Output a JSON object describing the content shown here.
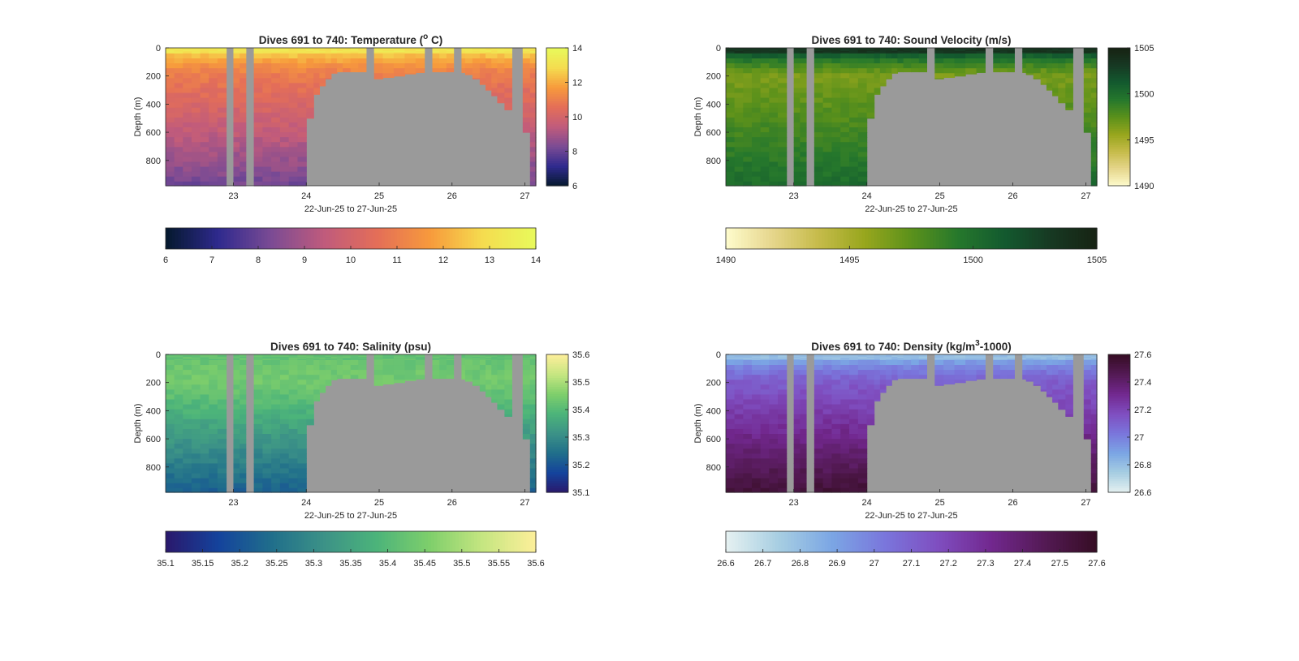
{
  "figure": {
    "background": "#ffffff",
    "mask_color": "#9a9a9a",
    "axis_color": "#262626"
  },
  "chart_data": [
    {
      "id": "temperature",
      "type": "heatmap",
      "title": "Dives 691 to 740: Temperature (",
      "title_sup": "o",
      "title_tail": " C)",
      "xlabel": "22-Jun-25 to 27-Jun-25",
      "ylabel": "Depth (m)",
      "xlim": [
        22.07,
        27.15
      ],
      "ylim": [
        0,
        980
      ],
      "y_reversed": true,
      "xticks": [
        23,
        24,
        25,
        26,
        27
      ],
      "yticks": [
        0,
        200,
        400,
        600,
        800
      ],
      "colormap": "thermal",
      "colormap_stops": [
        "#04192d",
        "#2f2a8e",
        "#7b4b94",
        "#c05b7c",
        "#e46e58",
        "#f79a3c",
        "#f5dc4f",
        "#e8fa5b"
      ],
      "clim": [
        6,
        14
      ],
      "colorbar_vertical_ticks": [
        6,
        8,
        10,
        12,
        14
      ],
      "colorbar_horizontal_ticks": [
        6,
        7,
        8,
        9,
        10,
        11,
        12,
        13,
        14
      ],
      "profile": {
        "surface_value": 13.2,
        "mixed_layer_depth": 35,
        "value_at_200": 10.9,
        "value_at_900": 8.4
      }
    },
    {
      "id": "sound_velocity",
      "type": "heatmap",
      "title": "Dives 691 to 740: Sound Velocity (m/s)",
      "xlabel": "22-Jun-25 to 27-Jun-25",
      "ylabel": "Depth (m)",
      "xlim": [
        22.07,
        27.15
      ],
      "ylim": [
        0,
        980
      ],
      "y_reversed": true,
      "xticks": [
        23,
        24,
        25,
        26,
        27
      ],
      "yticks": [
        0,
        200,
        400,
        600,
        800
      ],
      "colormap": "speed",
      "colormap_stops": [
        "#fefccd",
        "#e6d68c",
        "#c6bb4a",
        "#97a61d",
        "#5b911b",
        "#26782c",
        "#135a2f",
        "#173923",
        "#172313"
      ],
      "clim": [
        1490,
        1505
      ],
      "colorbar_vertical_ticks": [
        1490,
        1495,
        1500,
        1505
      ],
      "colorbar_horizontal_ticks": [
        1490,
        1495,
        1500,
        1505
      ],
      "profile": {
        "surface_value": 1503.5,
        "mixed_layer_depth": 35,
        "value_at_200": 1496.5,
        "value_at_900": 1499.8
      }
    },
    {
      "id": "salinity",
      "type": "heatmap",
      "title": "Dives 691 to 740: Salinity (psu)",
      "xlabel": "22-Jun-25 to 27-Jun-25",
      "ylabel": "Depth (m)",
      "xlim": [
        22.07,
        27.15
      ],
      "ylim": [
        0,
        980
      ],
      "y_reversed": true,
      "xticks": [
        23,
        24,
        25,
        26,
        27
      ],
      "yticks": [
        0,
        200,
        400,
        600,
        800
      ],
      "colormap": "haline",
      "colormap_stops": [
        "#2a186c",
        "#14439c",
        "#206e8b",
        "#3c9287",
        "#4cb47a",
        "#7fcf6b",
        "#c6e681",
        "#fdef9a"
      ],
      "clim": [
        35.1,
        35.6
      ],
      "colorbar_vertical_ticks": [
        35.1,
        35.2,
        35.3,
        35.4,
        35.5,
        35.6
      ],
      "colorbar_horizontal_ticks": [
        35.1,
        35.15,
        35.2,
        35.25,
        35.3,
        35.35,
        35.4,
        35.45,
        35.5,
        35.55,
        35.6
      ],
      "profile": {
        "surface_value": 35.42,
        "mixed_layer_depth": 35,
        "value_at_200": 35.44,
        "value_at_900": 35.24
      }
    },
    {
      "id": "density",
      "type": "heatmap",
      "title": "Dives 691 to 740: Density (kg/m",
      "title_sup": "3",
      "title_tail": "-1000)",
      "xlabel": "22-Jun-25 to 27-Jun-25",
      "ylabel": "Depth (m)",
      "xlim": [
        22.07,
        27.15
      ],
      "ylim": [
        0,
        980
      ],
      "y_reversed": true,
      "xticks": [
        23,
        24,
        25,
        26,
        27
      ],
      "yticks": [
        0,
        200,
        400,
        600,
        800
      ],
      "colormap": "dense",
      "colormap_stops": [
        "#e6f1f1",
        "#a7cee2",
        "#7ba6e4",
        "#7a76dc",
        "#7f4ec0",
        "#72288f",
        "#541a55",
        "#360d24"
      ],
      "clim": [
        26.6,
        27.6
      ],
      "colorbar_vertical_ticks": [
        26.6,
        26.8,
        27,
        27.2,
        27.4,
        27.6
      ],
      "colorbar_horizontal_ticks": [
        26.6,
        26.7,
        26.8,
        26.9,
        27,
        27.1,
        27.2,
        27.3,
        27.4,
        27.5,
        27.6
      ],
      "profile": {
        "surface_value": 26.8,
        "mixed_layer_depth": 35,
        "value_at_200": 27.12,
        "value_at_900": 27.5
      }
    }
  ],
  "dives": {
    "profiles": [
      {
        "t0": 22.07,
        "t1": 22.9,
        "max_depth": 980
      },
      {
        "t0": 23.0,
        "t1": 23.17,
        "max_depth": 980
      },
      {
        "t0": 23.28,
        "t1": 24.0,
        "max_depth": 980
      },
      {
        "t0": 24.0,
        "t1": 24.1,
        "max_depth": 500
      },
      {
        "t0": 24.1,
        "t1": 24.18,
        "max_depth": 330
      },
      {
        "t0": 24.18,
        "t1": 24.26,
        "max_depth": 270
      },
      {
        "t0": 24.26,
        "t1": 24.34,
        "max_depth": 220
      },
      {
        "t0": 24.34,
        "t1": 24.42,
        "max_depth": 180
      },
      {
        "t0": 24.42,
        "t1": 24.5,
        "max_depth": 170
      },
      {
        "t0": 24.5,
        "t1": 24.82,
        "max_depth": 170
      },
      {
        "t0": 24.93,
        "t1": 25.05,
        "max_depth": 220
      },
      {
        "t0": 25.05,
        "t1": 25.2,
        "max_depth": 210
      },
      {
        "t0": 25.2,
        "t1": 25.35,
        "max_depth": 200
      },
      {
        "t0": 25.35,
        "t1": 25.5,
        "max_depth": 185
      },
      {
        "t0": 25.5,
        "t1": 25.62,
        "max_depth": 175
      },
      {
        "t0": 25.73,
        "t1": 26.02,
        "max_depth": 170
      },
      {
        "t0": 26.13,
        "t1": 26.18,
        "max_depth": 175
      },
      {
        "t0": 26.18,
        "t1": 26.28,
        "max_depth": 190
      },
      {
        "t0": 26.28,
        "t1": 26.38,
        "max_depth": 220
      },
      {
        "t0": 26.38,
        "t1": 26.46,
        "max_depth": 260
      },
      {
        "t0": 26.46,
        "t1": 26.54,
        "max_depth": 300
      },
      {
        "t0": 26.54,
        "t1": 26.62,
        "max_depth": 340
      },
      {
        "t0": 26.62,
        "t1": 26.72,
        "max_depth": 390
      },
      {
        "t0": 26.72,
        "t1": 26.82,
        "max_depth": 440
      },
      {
        "t0": 26.97,
        "t1": 27.07,
        "max_depth": 600
      },
      {
        "t0": 27.07,
        "t1": 27.15,
        "max_depth": 980
      }
    ]
  }
}
